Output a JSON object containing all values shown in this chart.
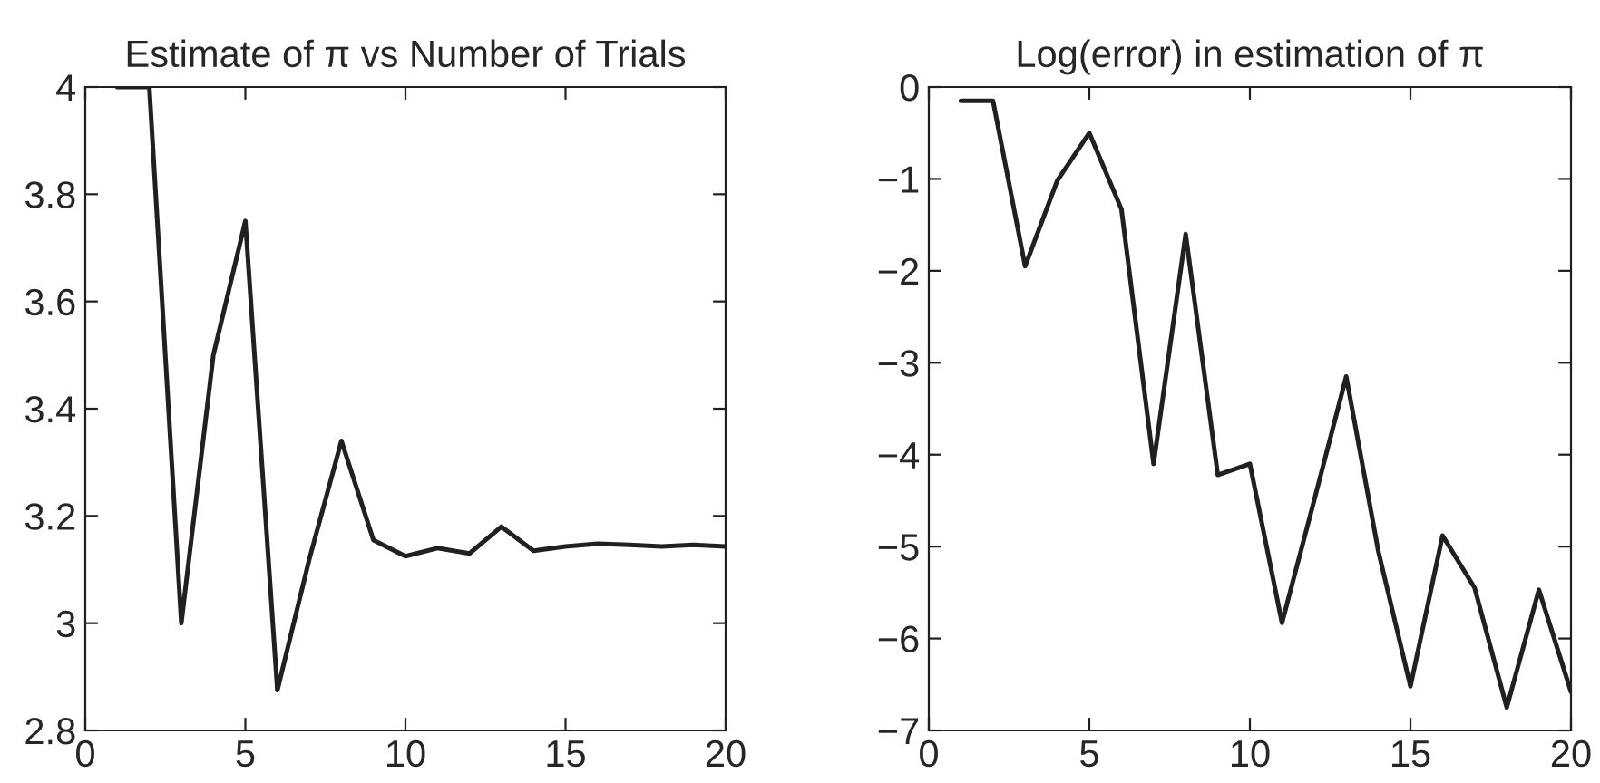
{
  "chart_data": [
    {
      "type": "line",
      "title": "Estimate of π vs Number of Trials",
      "x": [
        1,
        2,
        3,
        4,
        5,
        6,
        7,
        8,
        9,
        10,
        11,
        12,
        13,
        14,
        15,
        16,
        17,
        18,
        19,
        20
      ],
      "series": [
        {
          "color": "#231f20",
          "values": [
            4,
            4,
            3.0,
            3.5,
            3.75,
            2.875,
            3.12,
            3.34,
            3.155,
            3.125,
            3.14,
            3.13,
            3.18,
            3.135,
            3.143,
            3.148,
            3.146,
            3.143,
            3.146,
            3.143
          ]
        }
      ],
      "xlim": [
        0,
        20
      ],
      "xticks": [
        0,
        5,
        10,
        15,
        20
      ],
      "ylim": [
        2.8,
        4
      ],
      "yticks": [
        {
          "value": 2.8,
          "label": "2.8"
        },
        3,
        {
          "value": 3.2,
          "label": "3.2"
        },
        {
          "value": 3.4,
          "label": "3.4"
        },
        {
          "value": 3.6,
          "label": "3.6"
        },
        {
          "value": 3.8,
          "label": "3.8"
        },
        4
      ],
      "grid": false,
      "line_style": "solid",
      "marker": "none"
    },
    {
      "type": "line",
      "title": "Log(error) in estimation of π",
      "x": [
        1,
        2,
        3,
        4,
        5,
        6,
        7,
        8,
        9,
        10,
        11,
        12,
        13,
        14,
        15,
        16,
        17,
        18,
        19,
        20
      ],
      "series": [
        {
          "color": "#231f20",
          "values": [
            -0.15,
            -0.15,
            -1.95,
            -1.02,
            -0.5,
            -1.33,
            -4.1,
            -1.6,
            -4.22,
            -4.1,
            -5.83,
            -4.5,
            -3.15,
            -5.05,
            -6.52,
            -4.88,
            -5.45,
            -6.75,
            -5.47,
            -6.58
          ]
        }
      ],
      "xlim": [
        0,
        20
      ],
      "xticks": [
        0,
        5,
        10,
        15,
        20
      ],
      "ylim": [
        -7,
        0
      ],
      "yticks": [
        {
          "value": -7,
          "label": "−7"
        },
        {
          "value": -6,
          "label": "−6"
        },
        {
          "value": -5,
          "label": "−5"
        },
        {
          "value": -4,
          "label": "−4"
        },
        {
          "value": -3,
          "label": "−3"
        },
        {
          "value": -2,
          "label": "−2"
        },
        {
          "value": -1,
          "label": "−1"
        },
        0
      ],
      "grid": false,
      "line_style": "solid",
      "marker": "none"
    }
  ]
}
